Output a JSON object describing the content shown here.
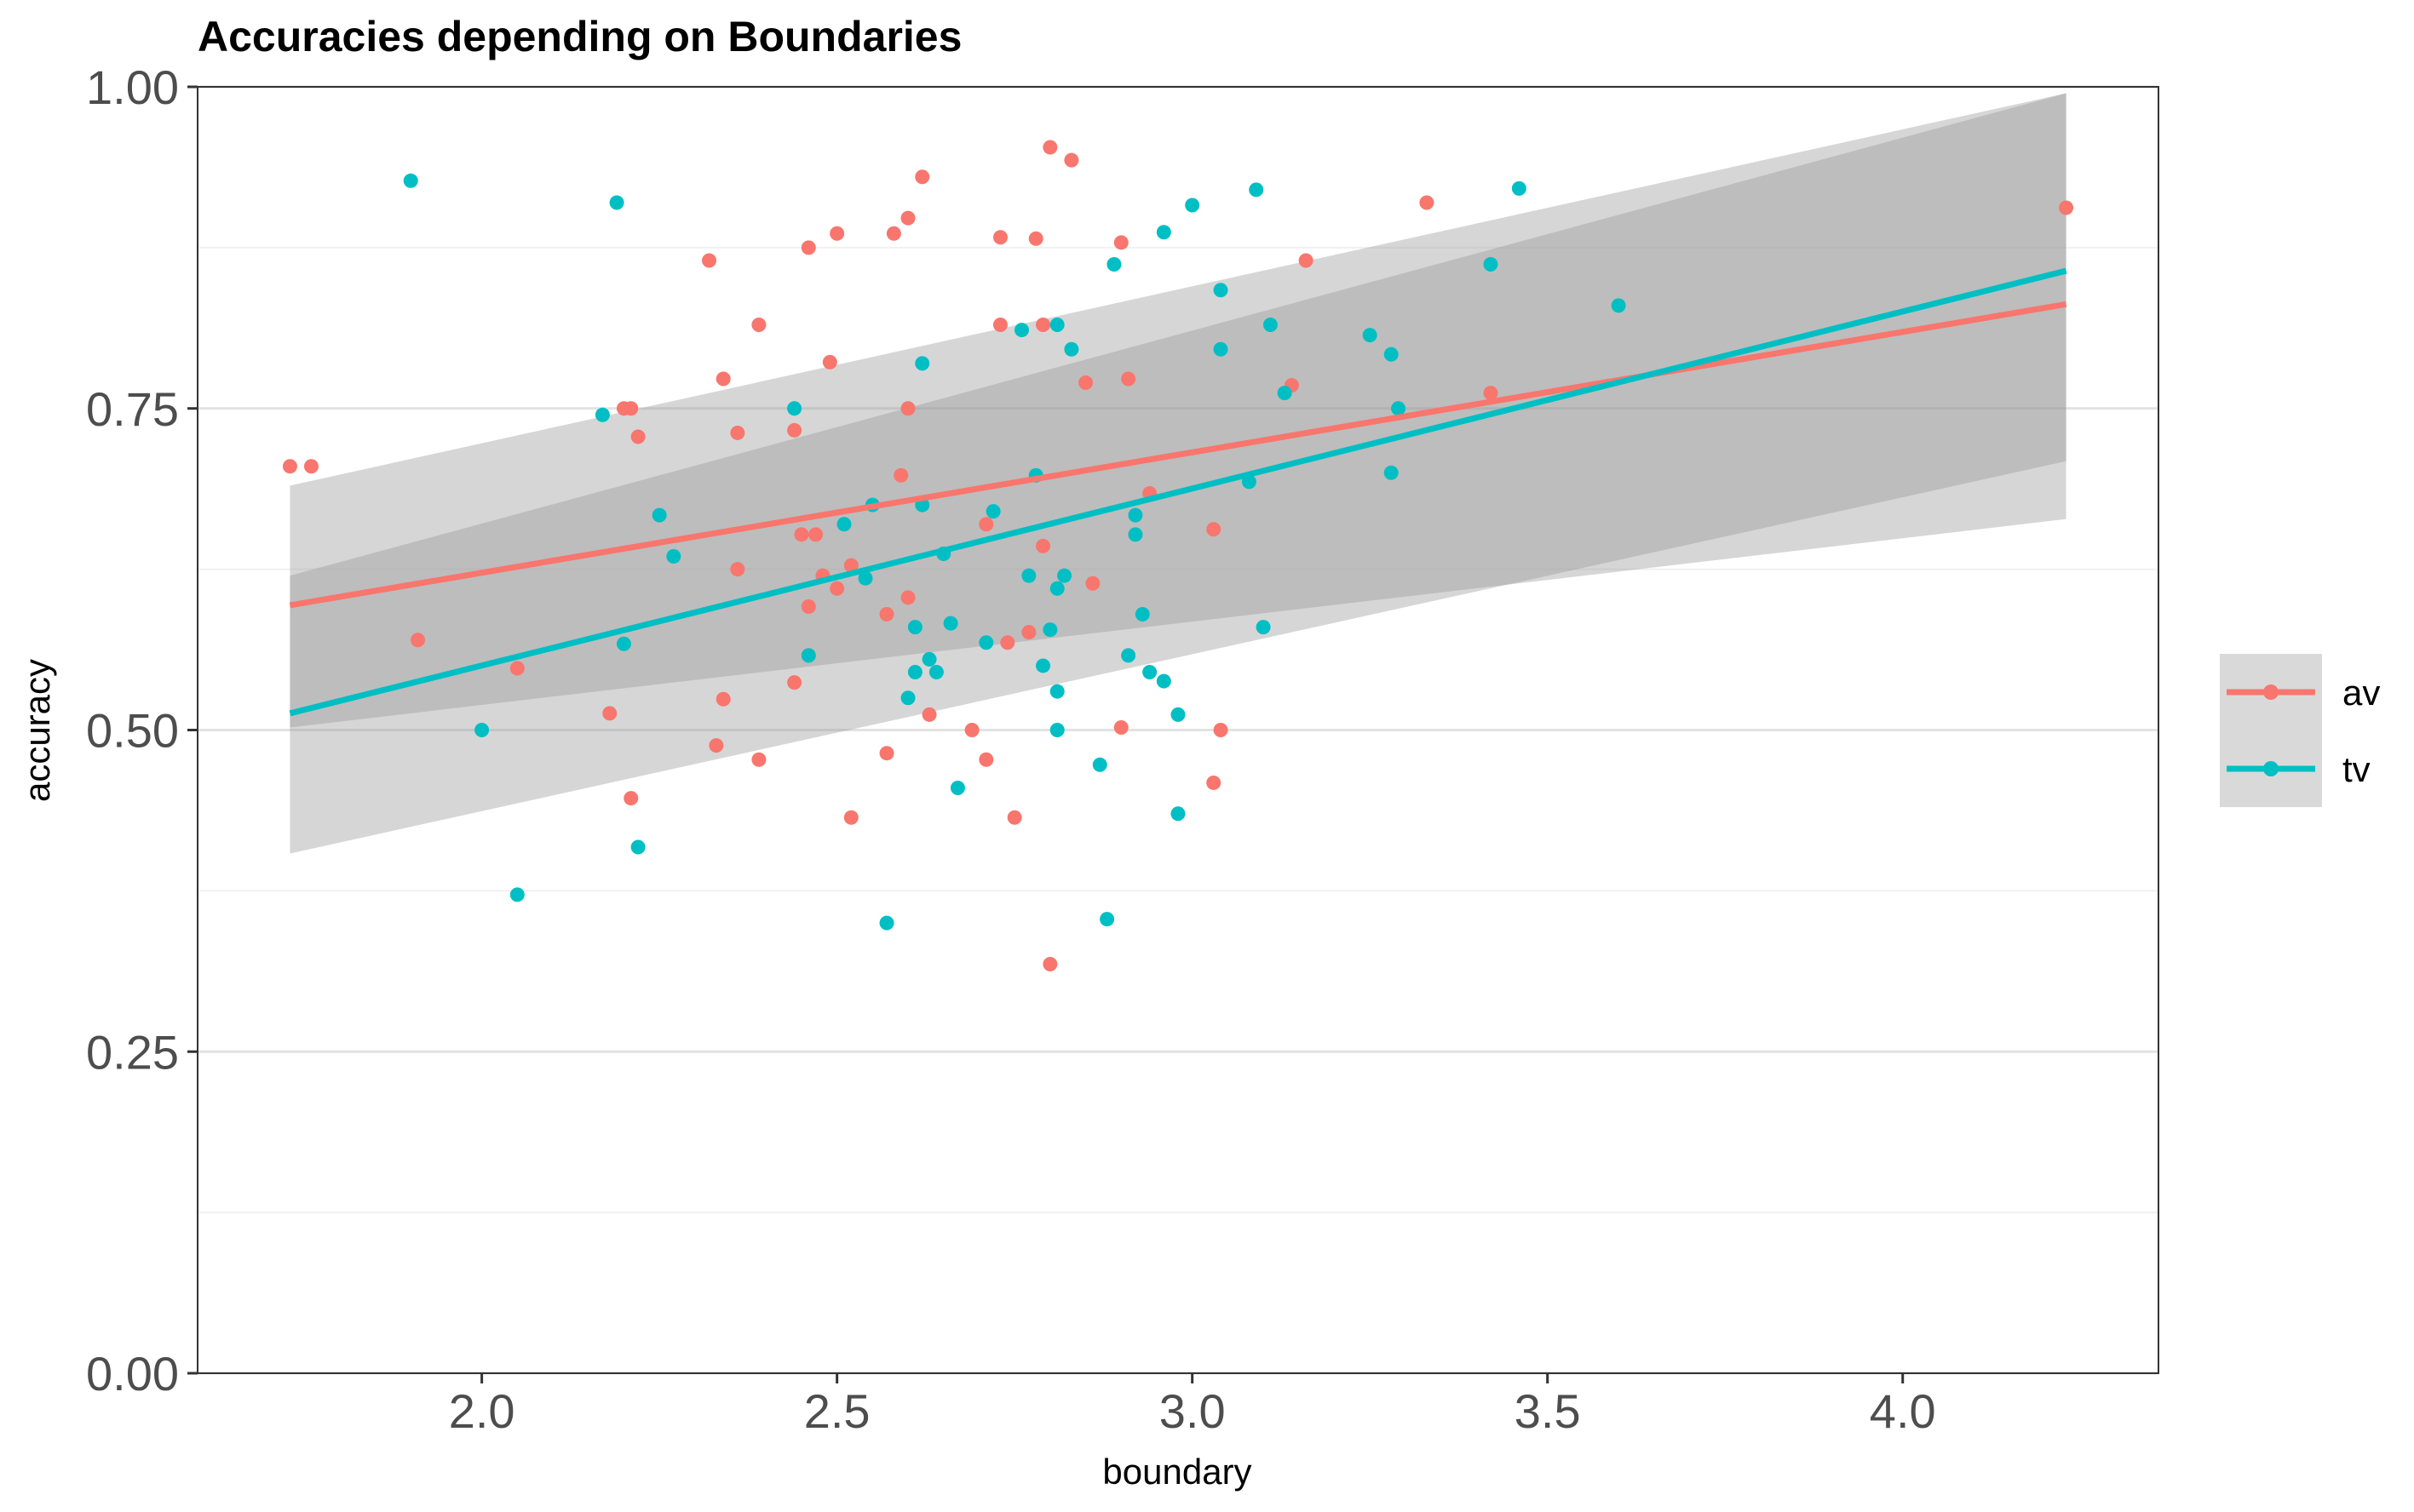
{
  "chart_data": {
    "type": "scatter",
    "title": "Accuracies depending on Boundaries",
    "xlabel": "boundary",
    "ylabel": "accuracy",
    "xlim": [
      1.6,
      4.36
    ],
    "ylim": [
      0.0,
      1.0
    ],
    "x_ticks": [
      2.0,
      2.5,
      3.0,
      3.5,
      4.0
    ],
    "x_tick_labels": [
      "2.0",
      "2.5",
      "3.0",
      "3.5",
      "4.0"
    ],
    "y_ticks": [
      0.0,
      0.25,
      0.5,
      0.75,
      1.0
    ],
    "y_tick_labels": [
      "0.00",
      "0.25",
      "0.50",
      "0.75",
      "1.00"
    ],
    "y_minor_gridlines": [
      0.125,
      0.375,
      0.625,
      0.875
    ],
    "grid": "horizontal",
    "legend": {
      "placement": "right",
      "entries": [
        "av",
        "tv"
      ]
    },
    "series": [
      {
        "name": "av",
        "color": "#F8766D",
        "points": [
          [
            1.73,
            0.705
          ],
          [
            1.76,
            0.705
          ],
          [
            1.91,
            0.57
          ],
          [
            2.05,
            0.548
          ],
          [
            2.18,
            0.513
          ],
          [
            2.2,
            0.75
          ],
          [
            2.21,
            0.75
          ],
          [
            2.21,
            0.447
          ],
          [
            2.22,
            0.728
          ],
          [
            2.32,
            0.865
          ],
          [
            2.33,
            0.488
          ],
          [
            2.34,
            0.524
          ],
          [
            2.34,
            0.773
          ],
          [
            2.36,
            0.731
          ],
          [
            2.36,
            0.625
          ],
          [
            2.39,
            0.477
          ],
          [
            2.39,
            0.815
          ],
          [
            2.44,
            0.537
          ],
          [
            2.44,
            0.733
          ],
          [
            2.45,
            0.652
          ],
          [
            2.46,
            0.875
          ],
          [
            2.46,
            0.596
          ],
          [
            2.46,
            0.558
          ],
          [
            2.47,
            0.652
          ],
          [
            2.48,
            0.62
          ],
          [
            2.49,
            0.786
          ],
          [
            2.5,
            0.886
          ],
          [
            2.5,
            0.61
          ],
          [
            2.52,
            0.628
          ],
          [
            2.52,
            0.432
          ],
          [
            2.57,
            0.59
          ],
          [
            2.57,
            0.482
          ],
          [
            2.58,
            0.886
          ],
          [
            2.59,
            0.698
          ],
          [
            2.6,
            0.75
          ],
          [
            2.6,
            0.898
          ],
          [
            2.6,
            0.603
          ],
          [
            2.62,
            0.93
          ],
          [
            2.63,
            0.512
          ],
          [
            2.69,
            0.5
          ],
          [
            2.71,
            0.477
          ],
          [
            2.71,
            0.66
          ],
          [
            2.73,
            0.883
          ],
          [
            2.73,
            0.815
          ],
          [
            2.74,
            0.568
          ],
          [
            2.75,
            0.432
          ],
          [
            2.77,
            0.576
          ],
          [
            2.78,
            0.882
          ],
          [
            2.79,
            0.815
          ],
          [
            2.79,
            0.643
          ],
          [
            2.8,
            0.953
          ],
          [
            2.8,
            0.318
          ],
          [
            2.83,
            0.943
          ],
          [
            2.85,
            0.77
          ],
          [
            2.86,
            0.614
          ],
          [
            2.9,
            0.879
          ],
          [
            2.9,
            0.502
          ],
          [
            2.91,
            0.773
          ],
          [
            2.94,
            0.684
          ],
          [
            3.03,
            0.459
          ],
          [
            3.03,
            0.656
          ],
          [
            3.04,
            0.5
          ],
          [
            3.14,
            0.768
          ],
          [
            3.16,
            0.865
          ],
          [
            3.33,
            0.91
          ],
          [
            3.42,
            0.762
          ],
          [
            4.23,
            0.906
          ]
        ],
        "fit": {
          "x": [
            1.73,
            4.23
          ],
          "y": [
            0.597,
            0.831
          ],
          "ci_lower": [
            0.502,
            0.664
          ],
          "ci_upper": [
            0.69,
            0.995
          ]
        }
      },
      {
        "name": "tv",
        "color": "#00BFC4",
        "points": [
          [
            1.9,
            0.927
          ],
          [
            2.0,
            0.5
          ],
          [
            2.05,
            0.372
          ],
          [
            2.17,
            0.745
          ],
          [
            2.19,
            0.91
          ],
          [
            2.2,
            0.567
          ],
          [
            2.22,
            0.409
          ],
          [
            2.25,
            0.667
          ],
          [
            2.27,
            0.635
          ],
          [
            2.44,
            0.75
          ],
          [
            2.46,
            0.558
          ],
          [
            2.51,
            0.66
          ],
          [
            2.54,
            0.618
          ],
          [
            2.55,
            0.675
          ],
          [
            2.57,
            0.35
          ],
          [
            2.6,
            0.525
          ],
          [
            2.61,
            0.58
          ],
          [
            2.61,
            0.545
          ],
          [
            2.62,
            0.785
          ],
          [
            2.62,
            0.675
          ],
          [
            2.63,
            0.555
          ],
          [
            2.64,
            0.545
          ],
          [
            2.65,
            0.637
          ],
          [
            2.66,
            0.583
          ],
          [
            2.67,
            0.455
          ],
          [
            2.71,
            0.568
          ],
          [
            2.72,
            0.67
          ],
          [
            2.76,
            0.811
          ],
          [
            2.77,
            0.62
          ],
          [
            2.78,
            0.698
          ],
          [
            2.79,
            0.55
          ],
          [
            2.8,
            0.578
          ],
          [
            2.81,
            0.53
          ],
          [
            2.81,
            0.5
          ],
          [
            2.81,
            0.61
          ],
          [
            2.81,
            0.815
          ],
          [
            2.82,
            0.62
          ],
          [
            2.83,
            0.796
          ],
          [
            2.87,
            0.473
          ],
          [
            2.88,
            0.353
          ],
          [
            2.89,
            0.862
          ],
          [
            2.91,
            0.558
          ],
          [
            2.92,
            0.667
          ],
          [
            2.92,
            0.652
          ],
          [
            2.93,
            0.59
          ],
          [
            2.94,
            0.545
          ],
          [
            2.96,
            0.887
          ],
          [
            2.96,
            0.538
          ],
          [
            2.98,
            0.512
          ],
          [
            2.98,
            0.435
          ],
          [
            3.0,
            0.908
          ],
          [
            3.04,
            0.796
          ],
          [
            3.04,
            0.842
          ],
          [
            3.08,
            0.693
          ],
          [
            3.09,
            0.92
          ],
          [
            3.1,
            0.58
          ],
          [
            3.11,
            0.815
          ],
          [
            3.13,
            0.762
          ],
          [
            3.25,
            0.807
          ],
          [
            3.28,
            0.792
          ],
          [
            3.28,
            0.7
          ],
          [
            3.29,
            0.75
          ],
          [
            3.42,
            0.862
          ],
          [
            3.46,
            0.921
          ],
          [
            3.6,
            0.83
          ]
        ],
        "fit": {
          "x": [
            1.73,
            4.23
          ],
          "y": [
            0.513,
            0.857
          ],
          "ci_lower": [
            0.404,
            0.709
          ],
          "ci_upper": [
            0.62,
            0.995
          ]
        }
      }
    ]
  }
}
